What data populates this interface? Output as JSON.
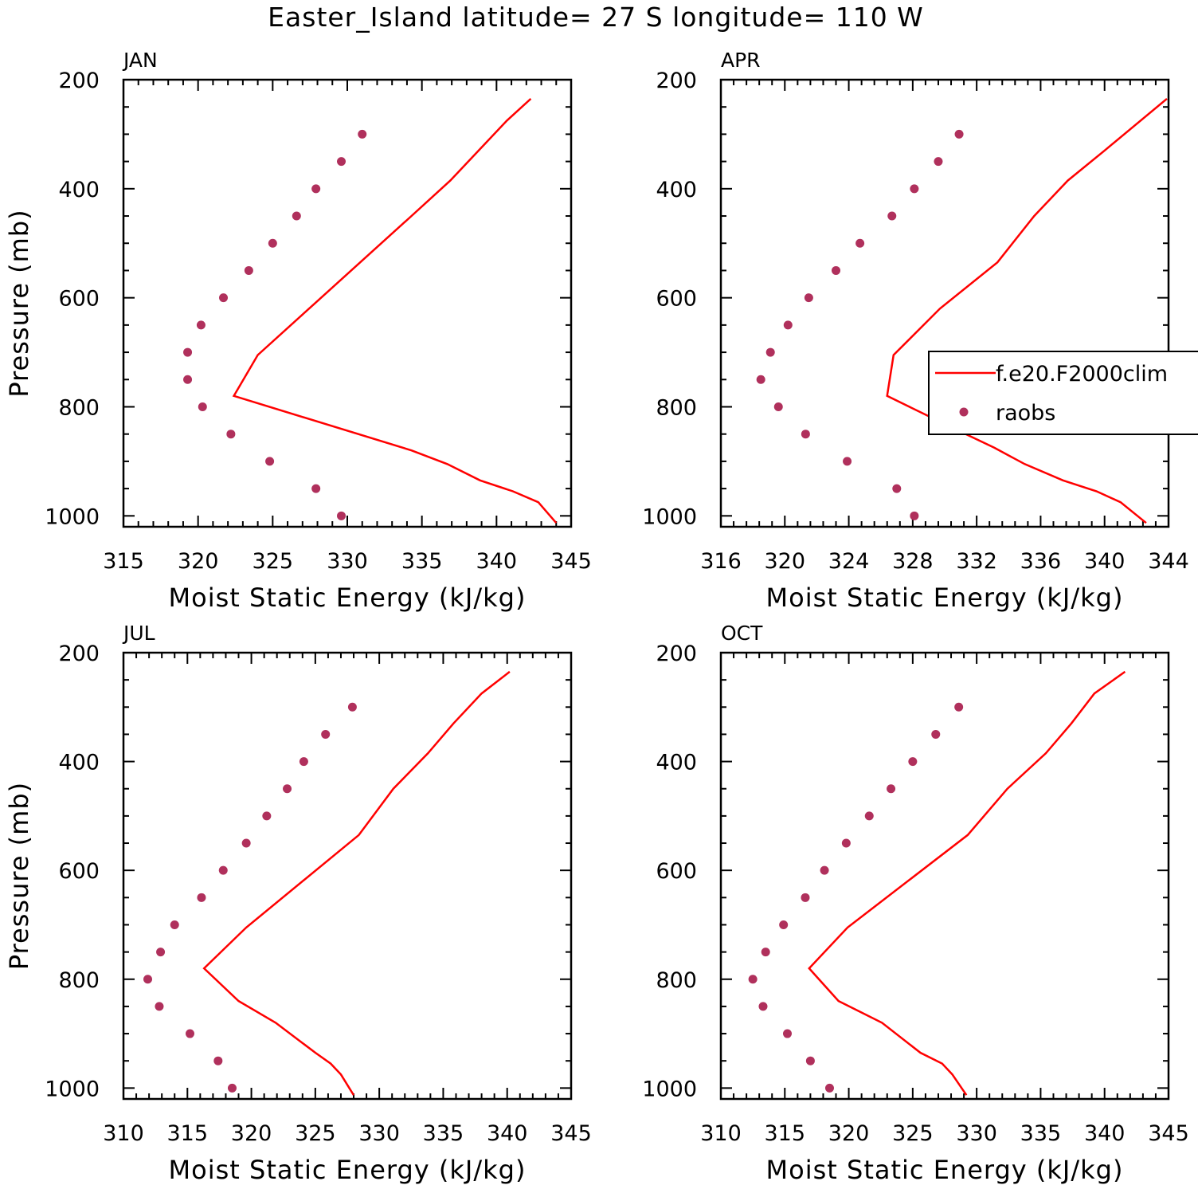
{
  "title": "Easter_Island  latitude= 27 S longitude= 110 W",
  "colors": {
    "model_line": "#ff0000",
    "raobs_marker": "#b0305c",
    "axes": "#000000"
  },
  "legend": {
    "entries": [
      {
        "label": "f.e20.F2000clim",
        "style": "line"
      },
      {
        "label": "raobs",
        "style": "marker"
      }
    ]
  },
  "chart_data": [
    {
      "type": "line",
      "title": "JAN",
      "xlabel": "Moist Static Energy (kJ/kg)",
      "ylabel": "Pressure (mb)",
      "xlim": [
        315,
        345
      ],
      "ylim": [
        1020,
        200
      ],
      "xticks": [
        315,
        320,
        325,
        330,
        335,
        340,
        345
      ],
      "xtick_labels": [
        "315",
        "320",
        "325",
        "330",
        "335",
        "340",
        "345"
      ],
      "yticks": [
        200,
        400,
        600,
        800,
        1000
      ],
      "ytick_labels": [
        "200",
        "400",
        "600",
        "800",
        "1000"
      ],
      "series": [
        {
          "name": "f.e20.F2000clim",
          "kind": "line",
          "x": [
            342.3,
            340.7,
            338.8,
            336.9,
            334.3,
            324.0,
            322.4,
            334.3,
            336.7,
            338.9,
            341.1,
            342.8,
            344.0
          ],
          "y": [
            235,
            275,
            330,
            385,
            450,
            705,
            780,
            880,
            905,
            935,
            955,
            975,
            1013
          ]
        },
        {
          "name": "raobs",
          "kind": "scatter",
          "x": [
            331.0,
            329.6,
            327.9,
            326.6,
            325.0,
            323.4,
            321.7,
            320.2,
            319.3,
            319.3,
            320.3,
            322.2,
            324.8,
            327.9,
            329.6
          ],
          "y": [
            300,
            350,
            400,
            450,
            500,
            550,
            600,
            650,
            700,
            750,
            800,
            850,
            900,
            950,
            1000
          ]
        }
      ]
    },
    {
      "type": "line",
      "title": "APR",
      "xlabel": "Moist Static Energy (kJ/kg)",
      "ylabel": "",
      "xlim": [
        316,
        344
      ],
      "ylim": [
        1020,
        200
      ],
      "xticks": [
        316,
        320,
        324,
        328,
        332,
        336,
        340,
        344
      ],
      "xtick_labels": [
        "316",
        "320",
        "324",
        "328",
        "332",
        "336",
        "340",
        "344"
      ],
      "yticks": [
        200,
        400,
        600,
        800,
        1000
      ],
      "ytick_labels": [
        "200",
        "400",
        "600",
        "800",
        "1000"
      ],
      "series": [
        {
          "name": "f.e20.F2000clim",
          "kind": "line",
          "x": [
            343.9,
            340.0,
            337.7,
            335.6,
            333.3,
            329.7,
            326.8,
            326.4,
            330.6,
            333.1,
            335.0,
            337.4,
            339.5,
            341.0,
            342.6
          ],
          "y": [
            235,
            330,
            385,
            450,
            535,
            620,
            705,
            780,
            840,
            875,
            905,
            935,
            955,
            975,
            1013
          ]
        },
        {
          "name": "raobs",
          "kind": "scatter",
          "x": [
            330.9,
            329.6,
            328.1,
            326.7,
            324.7,
            323.2,
            321.5,
            320.2,
            319.1,
            318.5,
            319.6,
            321.3,
            323.9,
            327.0,
            328.1
          ],
          "y": [
            300,
            350,
            400,
            450,
            500,
            550,
            600,
            650,
            700,
            750,
            800,
            850,
            900,
            950,
            1000
          ]
        }
      ]
    },
    {
      "type": "line",
      "title": "JUL",
      "xlabel": "Moist Static Energy (kJ/kg)",
      "ylabel": "Pressure (mb)",
      "xlim": [
        310,
        345
      ],
      "ylim": [
        1020,
        200
      ],
      "xticks": [
        310,
        315,
        320,
        325,
        330,
        335,
        340,
        345
      ],
      "xtick_labels": [
        "310",
        "315",
        "320",
        "325",
        "330",
        "335",
        "340",
        "345"
      ],
      "yticks": [
        200,
        400,
        600,
        800,
        1000
      ],
      "ytick_labels": [
        "200",
        "400",
        "600",
        "800",
        "1000"
      ],
      "series": [
        {
          "name": "f.e20.F2000clim",
          "kind": "line",
          "x": [
            340.2,
            338.0,
            335.8,
            333.8,
            331.1,
            328.4,
            319.6,
            316.3,
            319.0,
            321.9,
            325.0,
            326.2,
            327.0,
            328.0
          ],
          "y": [
            235,
            275,
            330,
            385,
            450,
            535,
            705,
            780,
            840,
            880,
            935,
            955,
            975,
            1013
          ]
        },
        {
          "name": "raobs",
          "kind": "scatter",
          "x": [
            327.9,
            325.8,
            324.1,
            322.8,
            321.2,
            319.6,
            317.8,
            316.1,
            314.0,
            312.9,
            311.9,
            312.8,
            315.2,
            317.4,
            318.5
          ],
          "y": [
            300,
            350,
            400,
            450,
            500,
            550,
            600,
            650,
            700,
            750,
            800,
            850,
            900,
            950,
            1000
          ]
        }
      ]
    },
    {
      "type": "line",
      "title": "OCT",
      "xlabel": "Moist Static Energy (kJ/kg)",
      "ylabel": "",
      "xlim": [
        310,
        345
      ],
      "ylim": [
        1020,
        200
      ],
      "xticks": [
        310,
        315,
        320,
        325,
        330,
        335,
        340,
        345
      ],
      "xtick_labels": [
        "310",
        "315",
        "320",
        "325",
        "330",
        "335",
        "340",
        "345"
      ],
      "yticks": [
        200,
        400,
        600,
        800,
        1000
      ],
      "ytick_labels": [
        "200",
        "400",
        "600",
        "800",
        "1000"
      ],
      "series": [
        {
          "name": "f.e20.F2000clim",
          "kind": "line",
          "x": [
            341.6,
            339.2,
            337.4,
            335.4,
            332.4,
            329.3,
            319.9,
            316.9,
            319.2,
            322.6,
            325.6,
            327.3,
            328.1,
            329.2
          ],
          "y": [
            235,
            275,
            330,
            385,
            450,
            535,
            705,
            780,
            840,
            880,
            935,
            955,
            975,
            1013
          ]
        },
        {
          "name": "raobs",
          "kind": "scatter",
          "x": [
            328.6,
            326.8,
            325.0,
            323.3,
            321.6,
            319.8,
            318.1,
            316.6,
            314.9,
            313.5,
            312.5,
            313.3,
            315.2,
            317.0,
            318.5
          ],
          "y": [
            300,
            350,
            400,
            450,
            500,
            550,
            600,
            650,
            700,
            750,
            800,
            850,
            900,
            950,
            1000
          ]
        }
      ]
    }
  ]
}
